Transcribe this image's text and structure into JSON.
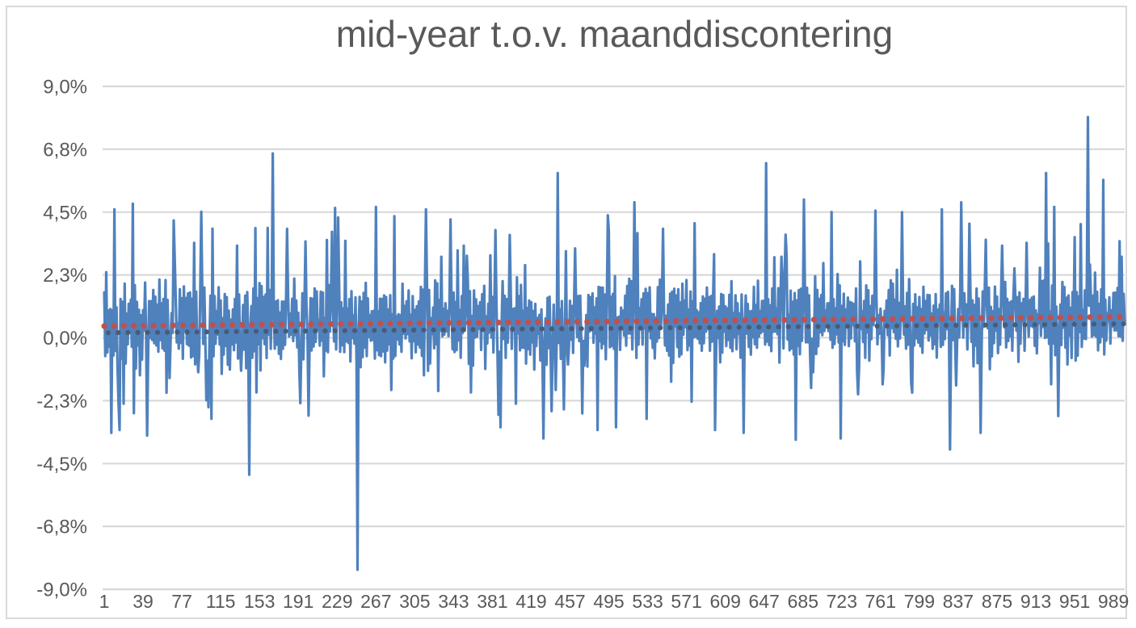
{
  "chart_data": {
    "type": "line",
    "title": "mid-year t.o.v. maanddiscontering",
    "xlabel": "",
    "ylabel": "",
    "grid": true,
    "legend": false,
    "ylim": [
      -9,
      9
    ],
    "xlim": [
      1,
      1000
    ],
    "n_points": 1000,
    "y_tick_labels": [
      "9,0%",
      "6,8%",
      "4,5%",
      "2,3%",
      "0,0%",
      "-2,3%",
      "-4,5%",
      "-6,8%",
      "-9,0%"
    ],
    "y_tick_values": [
      9,
      6.75,
      4.5,
      2.25,
      0,
      -2.25,
      -4.5,
      -6.75,
      -9
    ],
    "x_tick_labels": [
      "1",
      "39",
      "77",
      "115",
      "153",
      "191",
      "229",
      "267",
      "305",
      "343",
      "381",
      "419",
      "457",
      "495",
      "533",
      "571",
      "609",
      "647",
      "685",
      "723",
      "761",
      "799",
      "837",
      "875",
      "913",
      "951",
      "989"
    ],
    "series": [
      {
        "name": "mid-year t.o.v. maanddiscontering",
        "color": "#4F81BD",
        "stroke_width": 3.2,
        "description": "dense noisy percentage series oscillating around ~+0.5%, typical band -1.5% to +2.4%",
        "generator": {
          "seed": 20240,
          "trend_start": 0.4,
          "trend_end": 0.75,
          "swing_min": 0.5,
          "swing_var": 1.0,
          "jitter": 0.85,
          "spike_up_prob": 0.042,
          "spike_up_base": 1.6,
          "spike_up_var": 2.6,
          "spike_dn_prob": 0.04,
          "spike_dn_base": 1.5,
          "spike_dn_var": 1.8
        },
        "outliers": [
          [
            2,
            2.35
          ],
          [
            7,
            -3.4
          ],
          [
            15,
            -3.3
          ],
          [
            28,
            4.8
          ],
          [
            29,
            -2.7
          ],
          [
            42,
            -3.5
          ],
          [
            68,
            4.2
          ],
          [
            88,
            3.4
          ],
          [
            105,
            -2.9
          ],
          [
            130,
            3.3
          ],
          [
            142,
            -4.9
          ],
          [
            165,
            6.6
          ],
          [
            179,
            3.9
          ],
          [
            218,
            3.5
          ],
          [
            248,
            -8.3
          ],
          [
            284,
            4.35
          ],
          [
            315,
            4.6
          ],
          [
            330,
            2.9
          ],
          [
            352,
            3.3
          ],
          [
            388,
            -3.2
          ],
          [
            412,
            2.6
          ],
          [
            430,
            -3.6
          ],
          [
            444,
            5.9
          ],
          [
            452,
            3.1
          ],
          [
            461,
            3.2
          ],
          [
            483,
            -3.3
          ],
          [
            501,
            -3.2
          ],
          [
            519,
            4.85
          ],
          [
            531,
            -2.9
          ],
          [
            547,
            3.9
          ],
          [
            578,
            4.1
          ],
          [
            598,
            -3.3
          ],
          [
            626,
            -3.4
          ],
          [
            648,
            6.25
          ],
          [
            663,
            2.9
          ],
          [
            677,
            -3.65
          ],
          [
            685,
            4.95
          ],
          [
            721,
            -3.6
          ],
          [
            755,
            4.55
          ],
          [
            781,
            4.5
          ],
          [
            820,
            4.6
          ],
          [
            828,
            -4.0
          ],
          [
            839,
            4.85
          ],
          [
            858,
            -3.4
          ],
          [
            879,
            3.3
          ],
          [
            903,
            3.4
          ],
          [
            922,
            5.9
          ],
          [
            934,
            -2.8
          ],
          [
            950,
            3.6
          ],
          [
            963,
            7.9
          ],
          [
            978,
            5.65
          ],
          [
            996,
            2.9
          ]
        ]
      }
    ],
    "trendlines": [
      {
        "name": "trendline-gray",
        "color": "#4A5B76",
        "start": 0.18,
        "end": 0.5,
        "dot_radius": 3.1,
        "dot_spacing": 12.2,
        "offset": 5
      },
      {
        "name": "trendline-red",
        "color": "#C0504D",
        "start": 0.42,
        "end": 0.75,
        "dot_radius": 3.6,
        "dot_spacing": 12.2,
        "offset": 0
      }
    ],
    "colors": {
      "gridline": "#D9D9D9",
      "axis_line": "#D9D9D9",
      "label": "#595959",
      "title": "#595959",
      "background": "#FFFFFF",
      "border": "#D9D9D9"
    }
  }
}
